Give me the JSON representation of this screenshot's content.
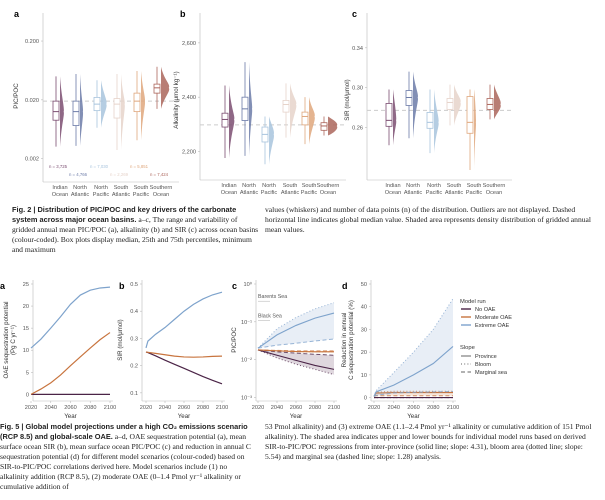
{
  "fig2": {
    "caption_title": "Fig. 2 | Distribution of PIC/POC and key drivers of the carbonate system across major ocean basins.",
    "caption_left": " a–c, The range and variability of gridded annual mean PIC/POC (a), alkalinity (b) and SIR (c) across ocean basins (colour-coded). Box plots display median, 25th and 75th percentiles, minimum and maximum",
    "caption_right": "values (whiskers) and number of data points (n) of the distribution. Outliers are not displayed. Dashed horizontal line indicates global median value. Shaded area represents density distribution of gridded annual mean values."
  },
  "fig5": {
    "caption_title": "Fig. 5 | Global model projections under a high CO₂ emissions scenario (RCP 8.5) and global-scale OAE.",
    "caption_left": " a–d, OAE sequestration potential (a), mean surface ocean SIR (b), mean surface ocean PIC/POC (c) and reduction in annual C sequestration potential (d) for different model scenarios (colour-coded) based on SIR-to-PIC/POC correlations derived here. Model scenarios include (1) no alkalinity addition (RCP 8.5), (2) moderate OAE (0–1.4 Pmol yr⁻¹ alkalinity or cumulative addition of",
    "caption_right": "53 Pmol alkalinity) and (3) extreme OAE (1.1–2.4 Pmol yr⁻¹ alkalinity or cumulative addition of 151 Pmol alkalinity). The shaded area indicates upper and lower bounds for individual model runs based on derived SIR-to-PIC/POC regressions from inter-province (solid line; slope: 4.31), bloom area (dotted line; slope: 5.54) and marginal sea (dashed line; slope: 1.28) analysis."
  },
  "colors": {
    "Indian Ocean": "#7b4d71",
    "North Atlantic": "#6c7ba8",
    "North Pacific": "#a8c4dd",
    "South Atlantic": "#e6d3ca",
    "South Pacific": "#dfa77d",
    "Southern Ocean": "#ac665c",
    "No OAE": "#4b2447",
    "Moderate OAE": "#c8743e",
    "Extreme OAE": "#7ea3cc"
  },
  "chart_data": [
    {
      "panel": "a",
      "type": "box-violin",
      "ylabel": "PIC/POC",
      "yscale": "log",
      "ylim": [
        0.0008,
        0.6
      ],
      "yticks": [
        0.002,
        0.02,
        0.2
      ],
      "ytick_labels": [
        "0.002",
        "0.020",
        "0.200"
      ],
      "global_median": 0.019,
      "categories": [
        "Indian\nOcean",
        "North\nAtlantic",
        "North\nPacific",
        "South\nAtlantic",
        "South\nPacific",
        "Southern\nOcean"
      ],
      "basins": [
        "Indian Ocean",
        "North Atlantic",
        "North Pacific",
        "South Atlantic",
        "South Pacific",
        "Southern Ocean"
      ],
      "n_labels": [
        "n = 3,725",
        "n = 4,766",
        "n = 7,030",
        "n = 2,269",
        "n = 5,851",
        "n = 7,424"
      ],
      "boxes": [
        {
          "min": 0.0032,
          "q1": 0.009,
          "median": 0.0126,
          "q3": 0.019,
          "max": 0.05
        },
        {
          "min": 0.0033,
          "q1": 0.0073,
          "median": 0.0126,
          "q3": 0.019,
          "max": 0.055
        },
        {
          "min": 0.0067,
          "q1": 0.0131,
          "median": 0.0169,
          "q3": 0.022,
          "max": 0.043
        },
        {
          "min": 0.0028,
          "q1": 0.0098,
          "median": 0.0169,
          "q3": 0.021,
          "max": 0.055
        },
        {
          "min": 0.0041,
          "q1": 0.0126,
          "median": 0.019,
          "q3": 0.026,
          "max": 0.062
        },
        {
          "min": 0.014,
          "q1": 0.026,
          "median": 0.032,
          "q3": 0.037,
          "max": 0.073
        }
      ]
    },
    {
      "panel": "b",
      "type": "box-violin",
      "ylabel": "Alkalinity (μmol kg⁻¹)",
      "yscale": "linear",
      "ylim": [
        2095,
        2710
      ],
      "yticks": [
        2200,
        2400,
        2600
      ],
      "ytick_labels": [
        "2,200",
        "2,400",
        "2,600"
      ],
      "global_median": 2298,
      "categories": [
        "Indian\nOcean",
        "North\nAtlantic",
        "North\nPacific",
        "South\nAtlantic",
        "South\nPacific",
        "Southern\nOcean"
      ],
      "basins": [
        "Indian Ocean",
        "North Atlantic",
        "North Pacific",
        "South Atlantic",
        "South Pacific",
        "Southern Ocean"
      ],
      "boxes": [
        {
          "min": 2176,
          "q1": 2290,
          "median": 2318,
          "q3": 2341,
          "max": 2443
        },
        {
          "min": 2184,
          "q1": 2314,
          "median": 2357,
          "q3": 2400,
          "max": 2529
        },
        {
          "min": 2153,
          "q1": 2235,
          "median": 2263,
          "q3": 2290,
          "max": 2329
        },
        {
          "min": 2251,
          "q1": 2345,
          "median": 2373,
          "q3": 2388,
          "max": 2451
        },
        {
          "min": 2227,
          "q1": 2298,
          "median": 2329,
          "q3": 2345,
          "max": 2400
        },
        {
          "min": 2259,
          "q1": 2278,
          "median": 2294,
          "q3": 2306,
          "max": 2329
        }
      ]
    },
    {
      "panel": "c",
      "type": "box-violin",
      "ylabel": "SIR (mol/μmol)",
      "yscale": "linear",
      "ylim": [
        0.207,
        0.375
      ],
      "yticks": [
        0.26,
        0.3,
        0.34
      ],
      "ytick_labels": [
        "0.26",
        "0.30",
        "0.34"
      ],
      "global_median": 0.277,
      "categories": [
        "Indian\nOcean",
        "North\nAtlantic",
        "North\nPacific",
        "South\nAtlantic",
        "South\nPacific",
        "Southern\nOcean"
      ],
      "basins": [
        "Indian Ocean",
        "North Atlantic",
        "North Pacific",
        "South Atlantic",
        "South Pacific",
        "Southern Ocean"
      ],
      "boxes": [
        {
          "min": 0.242,
          "q1": 0.261,
          "median": 0.267,
          "q3": 0.284,
          "max": 0.298
        },
        {
          "min": 0.249,
          "q1": 0.282,
          "median": 0.29,
          "q3": 0.297,
          "max": 0.316
        },
        {
          "min": 0.234,
          "q1": 0.259,
          "median": 0.265,
          "q3": 0.275,
          "max": 0.298
        },
        {
          "min": 0.262,
          "q1": 0.278,
          "median": 0.285,
          "q3": 0.289,
          "max": 0.303
        },
        {
          "min": 0.217,
          "q1": 0.254,
          "median": 0.265,
          "q3": 0.291,
          "max": 0.298
        },
        {
          "min": 0.268,
          "q1": 0.278,
          "median": 0.283,
          "q3": 0.289,
          "max": 0.303
        }
      ]
    },
    {
      "panel": "a",
      "type": "line",
      "xlabel": "Year",
      "ylabel": "OAE sequestration potential\n(Pg C yr⁻¹)",
      "xlim": [
        2020,
        2100
      ],
      "xticks": [
        2020,
        2040,
        2060,
        2080,
        2100
      ],
      "ylim": [
        -1.5,
        25
      ],
      "yticks": [
        0,
        5,
        10,
        15,
        20,
        25
      ],
      "x": [
        2020,
        2030,
        2040,
        2050,
        2060,
        2070,
        2080,
        2090,
        2100
      ],
      "series": [
        {
          "name": "No OAE",
          "values": [
            0,
            0,
            0,
            0,
            0,
            0,
            0,
            0,
            0
          ]
        },
        {
          "name": "Moderate OAE",
          "values": [
            0,
            1.2,
            2.6,
            4.4,
            6.5,
            8.5,
            10.5,
            12.4,
            14
          ]
        },
        {
          "name": "Extreme OAE",
          "values": [
            10.5,
            12.5,
            15,
            17.6,
            20.4,
            22.5,
            23.6,
            24.1,
            24.3
          ]
        }
      ]
    },
    {
      "panel": "b",
      "type": "line",
      "xlabel": "Year",
      "ylabel": "SIR (mol/μmol)",
      "xlim": [
        2020,
        2100
      ],
      "xticks": [
        2020,
        2040,
        2060,
        2080,
        2100
      ],
      "ylim": [
        0.07,
        0.5
      ],
      "yticks": [
        0.1,
        0.2,
        0.3,
        0.4,
        0.5
      ],
      "x": [
        2020,
        2022,
        2030,
        2040,
        2050,
        2060,
        2070,
        2080,
        2090,
        2100
      ],
      "series": [
        {
          "name": "No OAE",
          "values": [
            0.25,
            0.248,
            0.236,
            0.22,
            0.205,
            0.19,
            0.175,
            0.16,
            0.146,
            0.133
          ]
        },
        {
          "name": "Moderate OAE",
          "values": [
            0.25,
            0.249,
            0.245,
            0.24,
            0.235,
            0.232,
            0.231,
            0.232,
            0.234,
            0.235
          ]
        },
        {
          "name": "Extreme OAE",
          "values": [
            0.265,
            0.29,
            0.315,
            0.34,
            0.37,
            0.4,
            0.425,
            0.445,
            0.46,
            0.47
          ]
        }
      ]
    },
    {
      "panel": "c",
      "type": "line",
      "xlabel": "Year",
      "ylabel": "PIC/POC",
      "yscale": "log",
      "xlim": [
        2020,
        2100
      ],
      "xticks": [
        2020,
        2040,
        2060,
        2080,
        2100
      ],
      "ylim": [
        0.0008,
        1
      ],
      "yticks": [
        0.001,
        0.01,
        0.1,
        1
      ],
      "ytick_labels": [
        "10⁻³",
        "10⁻²",
        "10⁻¹",
        "10⁰"
      ],
      "annotations": [
        {
          "text": "Barents Sea",
          "y": 0.42
        },
        {
          "text": "Black Sea",
          "y": 0.13
        }
      ],
      "x": [
        2020,
        2040,
        2060,
        2080,
        2100
      ],
      "series": [
        {
          "name": "No OAE",
          "province": [
            0.018,
            0.013,
            0.0095,
            0.007,
            0.0055
          ],
          "bloom": [
            0.018,
            0.011,
            0.0075,
            0.0055,
            0.004
          ],
          "marginal": [
            0.018,
            0.016,
            0.0148,
            0.0138,
            0.013
          ]
        },
        {
          "name": "Moderate OAE",
          "province": [
            0.018,
            0.017,
            0.0163,
            0.016,
            0.016
          ],
          "bloom": [
            0.018,
            0.0168,
            0.0162,
            0.016,
            0.016
          ],
          "marginal": [
            0.018,
            0.0175,
            0.017,
            0.017,
            0.017
          ]
        },
        {
          "name": "Extreme OAE",
          "province": [
            0.02,
            0.045,
            0.08,
            0.125,
            0.17
          ],
          "bloom": [
            0.02,
            0.065,
            0.13,
            0.22,
            0.32
          ],
          "marginal": [
            0.02,
            0.024,
            0.027,
            0.031,
            0.035
          ]
        }
      ]
    },
    {
      "panel": "d",
      "type": "line",
      "xlabel": "Year",
      "ylabel": "Reduction in annual\nC sequestration potential (%)",
      "xlim": [
        2020,
        2100
      ],
      "xticks": [
        2020,
        2040,
        2060,
        2080,
        2100
      ],
      "ylim": [
        -1.5,
        50
      ],
      "yticks": [
        0,
        10,
        20,
        30,
        40,
        50
      ],
      "x": [
        2020,
        2022,
        2040,
        2060,
        2080,
        2100
      ],
      "series": [
        {
          "name": "No OAE",
          "province": [
            0,
            0,
            0,
            0,
            0,
            0
          ],
          "bloom": [
            0,
            0,
            0,
            0,
            0,
            0
          ],
          "marginal": [
            0,
            0,
            0,
            0,
            0,
            0
          ]
        },
        {
          "name": "Moderate OAE",
          "province": [
            0.5,
            2,
            2.2,
            2.2,
            2.2,
            2.2
          ],
          "bloom": [
            0.5,
            2.4,
            2.8,
            2.8,
            2.8,
            2.8
          ],
          "marginal": [
            0.5,
            0.8,
            0.8,
            0.8,
            0.8,
            0.8
          ]
        },
        {
          "name": "Extreme OAE",
          "province": [
            0.5,
            2.5,
            5.5,
            10,
            15,
            22.5
          ],
          "bloom": [
            0.5,
            3,
            11,
            20,
            30,
            43.5
          ],
          "marginal": [
            0.5,
            1,
            2,
            2.3,
            2.5,
            2.7
          ]
        }
      ],
      "legend": {
        "model_run_title": "Model run",
        "model_runs": [
          "No OAE",
          "Moderate OAE",
          "Extreme OAE"
        ],
        "slope_title": "Slope",
        "slopes": [
          "Province",
          "Bloom",
          "Marginal sea"
        ],
        "placement": "right"
      }
    }
  ]
}
